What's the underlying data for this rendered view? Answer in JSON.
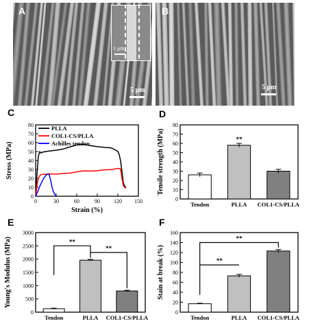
{
  "panels": {
    "A": {
      "label": "A",
      "scalebar": "5 μm",
      "inset_scalebar": "1 μm"
    },
    "B": {
      "label": "B",
      "scalebar": "5 μm"
    },
    "C": {
      "label": "C"
    },
    "D": {
      "label": "D"
    },
    "E": {
      "label": "E"
    },
    "F": {
      "label": "F"
    }
  },
  "chart_data": [
    {
      "id": "C",
      "type": "line",
      "xlabel": "Strain (%)",
      "ylabel": "Stress (MPa)",
      "xlim": [
        0,
        150
      ],
      "ylim": [
        0,
        80
      ],
      "xticks": [
        0,
        30,
        60,
        90,
        120,
        150
      ],
      "yticks": [
        0,
        10,
        20,
        30,
        40,
        50,
        60,
        70,
        80
      ],
      "legend": "top-left",
      "series": [
        {
          "name": "PLLA",
          "color": "#000000",
          "x": [
            0,
            2,
            4,
            6,
            8,
            10,
            15,
            20,
            30,
            40,
            50,
            60,
            70,
            80,
            90,
            100,
            110,
            115,
            120,
            122,
            124,
            126,
            128,
            130,
            132
          ],
          "y": [
            0,
            25,
            45,
            50,
            48,
            49,
            50,
            51,
            52,
            53,
            55,
            57,
            58,
            57,
            56,
            55,
            54,
            52,
            50,
            47,
            40,
            28,
            15,
            11,
            10
          ]
        },
        {
          "name": "COL1-CS/PLLA",
          "color": "#ff0000",
          "x": [
            0,
            2,
            4,
            6,
            8,
            10,
            20,
            30,
            40,
            50,
            60,
            70,
            80,
            90,
            100,
            110,
            120,
            124,
            126,
            128,
            130,
            132
          ],
          "y": [
            0,
            12,
            20,
            23,
            24,
            24,
            25,
            25,
            26,
            26,
            27,
            28,
            28,
            29,
            30,
            30,
            31,
            30,
            20,
            12,
            10,
            9
          ]
        },
        {
          "name": "Achilles tendon",
          "color": "#0000ff",
          "x": [
            0,
            3,
            6,
            9,
            12,
            15,
            18,
            20,
            22,
            24,
            26,
            28,
            30
          ],
          "y": [
            0,
            5,
            11,
            16,
            20,
            23,
            25,
            24,
            18,
            10,
            5,
            2,
            0
          ]
        }
      ]
    },
    {
      "id": "D",
      "type": "bar",
      "ylabel": "Tensile strength (MPa)",
      "categories": [
        "Tendon",
        "PLLA",
        "COL1-CS/PLLA"
      ],
      "values": [
        26,
        58,
        30
      ],
      "errors": [
        2,
        2,
        2
      ],
      "colors": [
        "#ffffff",
        "#c0c0c0",
        "#808080"
      ],
      "ylim": [
        0,
        80
      ],
      "yticks": [
        0,
        10,
        20,
        30,
        40,
        50,
        60,
        70,
        80
      ],
      "annotations": [
        {
          "bar": "PLLA",
          "text": "**"
        }
      ]
    },
    {
      "id": "E",
      "type": "bar",
      "ylabel": "Young's Modulus (MPa)",
      "categories": [
        "Tendon",
        "PLLA",
        "COL1-CS/PLLA"
      ],
      "values": [
        130,
        1960,
        800
      ],
      "errors": [
        20,
        30,
        25
      ],
      "colors": [
        "#ffffff",
        "#c0c0c0",
        "#808080"
      ],
      "ylim": [
        0,
        3000
      ],
      "yticks": [
        0,
        500,
        1000,
        1500,
        2000,
        2500,
        3000
      ],
      "brackets": [
        {
          "from": "Tendon",
          "to": "PLLA",
          "text": "**"
        },
        {
          "from": "PLLA",
          "to": "COL1-CS/PLLA",
          "text": "**"
        }
      ]
    },
    {
      "id": "F",
      "type": "bar",
      "ylabel": "Stain at break (%)",
      "categories": [
        "Tendon",
        "PLLA",
        "COL1-CS/PLLA"
      ],
      "values": [
        17,
        73,
        123
      ],
      "errors": [
        1,
        3,
        3
      ],
      "colors": [
        "#ffffff",
        "#c0c0c0",
        "#808080"
      ],
      "ylim": [
        0,
        160
      ],
      "yticks": [
        0,
        20,
        40,
        60,
        80,
        100,
        120,
        140,
        160
      ],
      "brackets": [
        {
          "from": "Tendon",
          "to": "PLLA",
          "text": "**"
        },
        {
          "from": "Tendon",
          "to": "COL1-CS/PLLA",
          "text": "**"
        }
      ]
    }
  ]
}
